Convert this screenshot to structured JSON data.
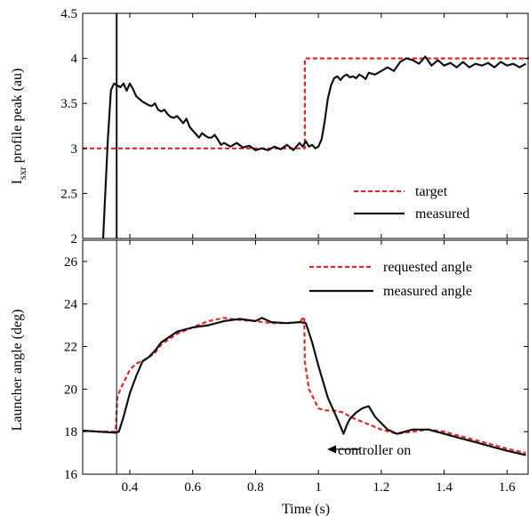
{
  "colors": {
    "target": "#e8262a",
    "measured": "#111111"
  },
  "chart_data": [
    {
      "type": "line",
      "title": "",
      "xlabel": "",
      "ylabel": "I_sxr profile peak (au)",
      "ylabel_main": "I",
      "ylabel_sub": "sxr",
      "ylabel_rest": " profile peak (au)",
      "xlim": [
        0.25,
        1.67
      ],
      "ylim": [
        2,
        4.5
      ],
      "yticks": [
        2,
        2.5,
        3,
        3.5,
        4,
        4.5
      ],
      "ytick_labels": [
        "2",
        "2.5",
        "3",
        "3.5",
        "4",
        "4.5"
      ],
      "grid": false,
      "legend_position": "bottom-right",
      "series": [
        {
          "name": "target",
          "style": "dashed",
          "x": [
            0.25,
            0.957,
            0.957,
            1.67
          ],
          "y": [
            3.0,
            3.0,
            4.0,
            4.0
          ]
        },
        {
          "name": "measured",
          "style": "solid",
          "x": [
            0.315,
            0.33,
            0.34,
            0.35,
            0.36,
            0.37,
            0.38,
            0.39,
            0.4,
            0.41,
            0.42,
            0.43,
            0.44,
            0.45,
            0.46,
            0.47,
            0.48,
            0.49,
            0.5,
            0.51,
            0.52,
            0.53,
            0.54,
            0.55,
            0.56,
            0.57,
            0.58,
            0.59,
            0.6,
            0.61,
            0.62,
            0.63,
            0.64,
            0.65,
            0.66,
            0.67,
            0.68,
            0.69,
            0.7,
            0.72,
            0.74,
            0.76,
            0.78,
            0.8,
            0.82,
            0.84,
            0.86,
            0.88,
            0.9,
            0.92,
            0.94,
            0.95,
            0.96,
            0.97,
            0.98,
            0.99,
            1.0,
            1.01,
            1.02,
            1.03,
            1.04,
            1.05,
            1.06,
            1.07,
            1.08,
            1.09,
            1.1,
            1.11,
            1.12,
            1.13,
            1.14,
            1.15,
            1.16,
            1.18,
            1.2,
            1.22,
            1.24,
            1.26,
            1.28,
            1.3,
            1.32,
            1.34,
            1.36,
            1.38,
            1.4,
            1.42,
            1.44,
            1.46,
            1.48,
            1.5,
            1.52,
            1.54,
            1.56,
            1.58,
            1.6,
            1.62,
            1.64,
            1.66
          ],
          "y": [
            2.0,
            3.1,
            3.65,
            3.72,
            3.7,
            3.68,
            3.72,
            3.64,
            3.72,
            3.66,
            3.58,
            3.55,
            3.52,
            3.5,
            3.48,
            3.47,
            3.5,
            3.43,
            3.41,
            3.43,
            3.38,
            3.35,
            3.34,
            3.36,
            3.32,
            3.28,
            3.33,
            3.24,
            3.2,
            3.16,
            3.12,
            3.17,
            3.14,
            3.12,
            3.12,
            3.15,
            3.1,
            3.04,
            3.06,
            3.02,
            3.06,
            3.01,
            3.03,
            2.98,
            3.0,
            2.98,
            3.02,
            2.99,
            3.04,
            2.98,
            3.06,
            3.02,
            3.08,
            3.02,
            3.04,
            3.0,
            3.02,
            3.1,
            3.3,
            3.55,
            3.7,
            3.78,
            3.8,
            3.76,
            3.8,
            3.82,
            3.79,
            3.8,
            3.78,
            3.82,
            3.8,
            3.77,
            3.84,
            3.82,
            3.86,
            3.9,
            3.86,
            3.96,
            4.0,
            3.98,
            3.94,
            4.02,
            3.92,
            3.98,
            3.92,
            3.95,
            3.9,
            3.96,
            3.9,
            3.94,
            3.92,
            3.95,
            3.9,
            3.96,
            3.92,
            3.94,
            3.9,
            3.94
          ]
        },
        {
          "name": "",
          "style": "solid",
          "x": [
            0.358,
            0.358
          ],
          "y": [
            2.0,
            4.5
          ]
        }
      ]
    },
    {
      "type": "line",
      "title": "",
      "xlabel": "Time (s)",
      "ylabel": "Launcher angle (deg)",
      "xlim": [
        0.25,
        1.67
      ],
      "ylim": [
        16,
        27
      ],
      "xticks": [
        0.4,
        0.6,
        0.8,
        1.0,
        1.2,
        1.4,
        1.6
      ],
      "xtick_labels": [
        "0.4",
        "0.6",
        "0.8",
        "1",
        "1.2",
        "1.4",
        "1.6"
      ],
      "yticks": [
        16,
        18,
        20,
        22,
        24,
        26
      ],
      "ytick_labels": [
        "16",
        "18",
        "20",
        "22",
        "24",
        "26"
      ],
      "grid": false,
      "legend_position": "top-right",
      "annotation": {
        "text": "controller on",
        "x": 0.358,
        "y": 16.5
      },
      "series": [
        {
          "name": "requested angle",
          "style": "dashed",
          "x": [
            0.25,
            0.3,
            0.355,
            0.36,
            0.37,
            0.38,
            0.4,
            0.42,
            0.45,
            0.48,
            0.5,
            0.55,
            0.6,
            0.65,
            0.7,
            0.75,
            0.8,
            0.85,
            0.9,
            0.94,
            0.955,
            0.957,
            0.96,
            0.97,
            0.99,
            1.0,
            1.02,
            1.05,
            1.08,
            1.1,
            1.15,
            1.2,
            1.25,
            1.3,
            1.35,
            1.4,
            1.45,
            1.5,
            1.55,
            1.6,
            1.66
          ],
          "y": [
            18.05,
            18.0,
            18.0,
            19.6,
            20.0,
            20.3,
            20.9,
            21.2,
            21.4,
            21.7,
            22.1,
            22.6,
            22.9,
            23.2,
            23.35,
            23.25,
            23.2,
            23.1,
            23.1,
            23.15,
            23.4,
            21.3,
            21.0,
            20.0,
            19.4,
            19.1,
            19.0,
            19.0,
            18.9,
            18.7,
            18.4,
            18.1,
            17.9,
            18.0,
            18.1,
            18.0,
            17.8,
            17.6,
            17.4,
            17.2,
            17.0
          ]
        },
        {
          "name": "measured angle",
          "style": "solid",
          "x": [
            0.25,
            0.3,
            0.355,
            0.365,
            0.38,
            0.4,
            0.42,
            0.44,
            0.46,
            0.48,
            0.5,
            0.55,
            0.6,
            0.65,
            0.7,
            0.75,
            0.8,
            0.82,
            0.85,
            0.9,
            0.94,
            0.96,
            0.98,
            1.0,
            1.03,
            1.06,
            1.08,
            1.09,
            1.1,
            1.12,
            1.14,
            1.16,
            1.18,
            1.2,
            1.22,
            1.25,
            1.3,
            1.35,
            1.4,
            1.45,
            1.5,
            1.55,
            1.6,
            1.66
          ],
          "y": [
            18.05,
            18.0,
            17.95,
            18.0,
            18.7,
            19.8,
            20.6,
            21.3,
            21.5,
            21.8,
            22.2,
            22.7,
            22.9,
            23.0,
            23.2,
            23.3,
            23.2,
            23.35,
            23.15,
            23.1,
            23.15,
            23.1,
            22.2,
            21.1,
            19.6,
            18.6,
            17.9,
            18.3,
            18.6,
            18.9,
            19.1,
            19.2,
            18.7,
            18.4,
            18.1,
            17.9,
            18.1,
            18.1,
            17.9,
            17.7,
            17.5,
            17.3,
            17.1,
            16.9
          ]
        },
        {
          "name": "",
          "style": "solid",
          "x": [
            0.358,
            0.358
          ],
          "y": [
            16.0,
            27.0
          ]
        }
      ]
    }
  ]
}
